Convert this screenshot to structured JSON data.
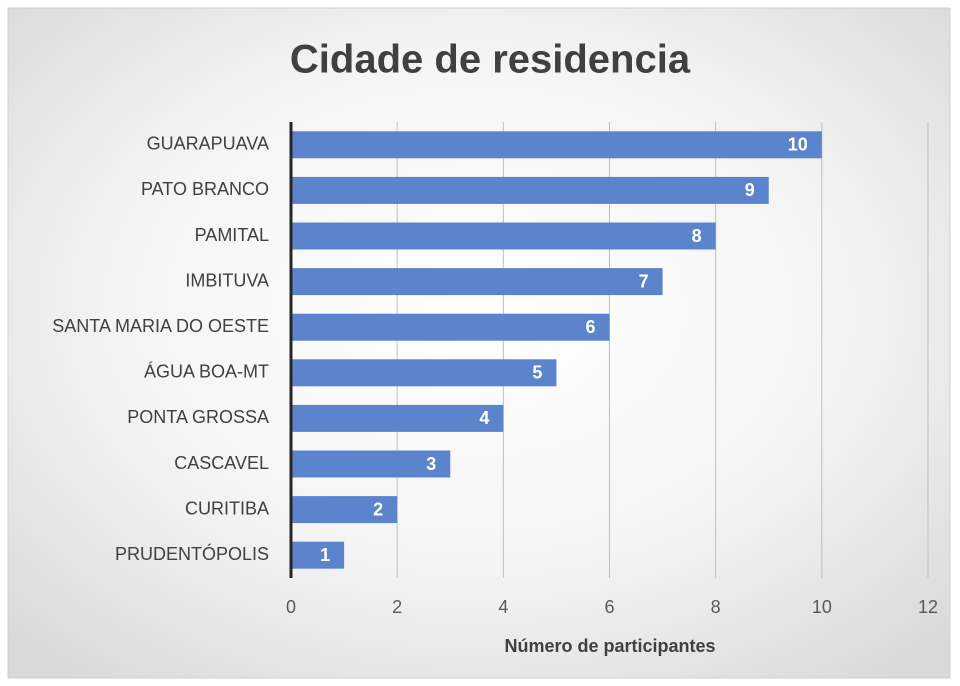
{
  "chart_data": {
    "type": "bar",
    "orientation": "horizontal",
    "title": "Cidade de residencia",
    "x_label": "Número de participantes",
    "categories": [
      "GUARAPUAVA",
      "PATO BRANCO",
      "PAMITAL",
      "IMBITUVA",
      "SANTA MARIA DO OESTE",
      "ÁGUA BOA-MT",
      "PONTA GROSSA",
      "CASCAVEL",
      "CURITIBA",
      "PRUDENTÓPOLIS"
    ],
    "values": [
      10,
      9,
      8,
      7,
      6,
      5,
      4,
      3,
      2,
      1
    ],
    "color": "#5b84cc",
    "xlim": [
      0,
      12
    ],
    "xticks": [
      0,
      2,
      4,
      6,
      8,
      10,
      12
    ],
    "grid": true,
    "data_labels": true
  }
}
